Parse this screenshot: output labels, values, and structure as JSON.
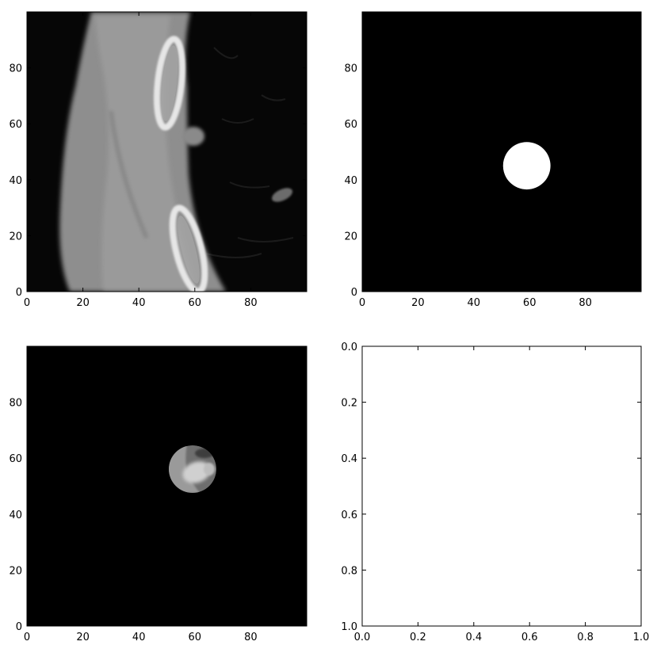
{
  "chart_data": [
    {
      "type": "image",
      "content": "CT slice (grayscale)",
      "xlim": [
        0,
        100
      ],
      "ylim": [
        100,
        0
      ],
      "xticks": [
        0,
        20,
        40,
        60,
        80
      ],
      "yticks": [
        0,
        20,
        40,
        60,
        80
      ],
      "xtick_labels": [
        "0",
        "20",
        "40",
        "60",
        "80"
      ],
      "ytick_labels": [
        "0",
        "20",
        "40",
        "60",
        "80"
      ]
    },
    {
      "type": "image",
      "content": "binary mask",
      "xlim": [
        0,
        100
      ],
      "ylim": [
        100,
        0
      ],
      "xticks": [
        0,
        20,
        40,
        60,
        80
      ],
      "yticks": [
        0,
        20,
        40,
        60,
        80
      ],
      "xtick_labels": [
        "0",
        "20",
        "40",
        "60",
        "80"
      ],
      "ytick_labels": [
        "0",
        "20",
        "40",
        "60",
        "80"
      ],
      "mask_center": [
        59,
        45
      ],
      "mask_radius": 8.5
    },
    {
      "type": "image",
      "content": "masked CT slice",
      "xlim": [
        0,
        100
      ],
      "ylim": [
        100,
        0
      ],
      "xticks": [
        0,
        20,
        40,
        60,
        80
      ],
      "yticks": [
        0,
        20,
        40,
        60,
        80
      ],
      "xtick_labels": [
        "0",
        "20",
        "40",
        "60",
        "80"
      ],
      "ytick_labels": [
        "0",
        "20",
        "40",
        "60",
        "80"
      ],
      "mask_center": [
        59,
        45
      ],
      "mask_radius": 8.5
    },
    {
      "type": "empty",
      "xlim": [
        0,
        1
      ],
      "ylim": [
        0,
        1
      ],
      "xticks": [
        0,
        0.2,
        0.4,
        0.6,
        0.8,
        1.0
      ],
      "yticks": [
        0,
        0.2,
        0.4,
        0.6,
        0.8,
        1.0
      ],
      "xtick_labels": [
        "0.0",
        "0.2",
        "0.4",
        "0.6",
        "0.8",
        "1.0"
      ],
      "ytick_labels": [
        "0.0",
        "0.2",
        "0.4",
        "0.6",
        "0.8",
        "1.0"
      ]
    }
  ]
}
